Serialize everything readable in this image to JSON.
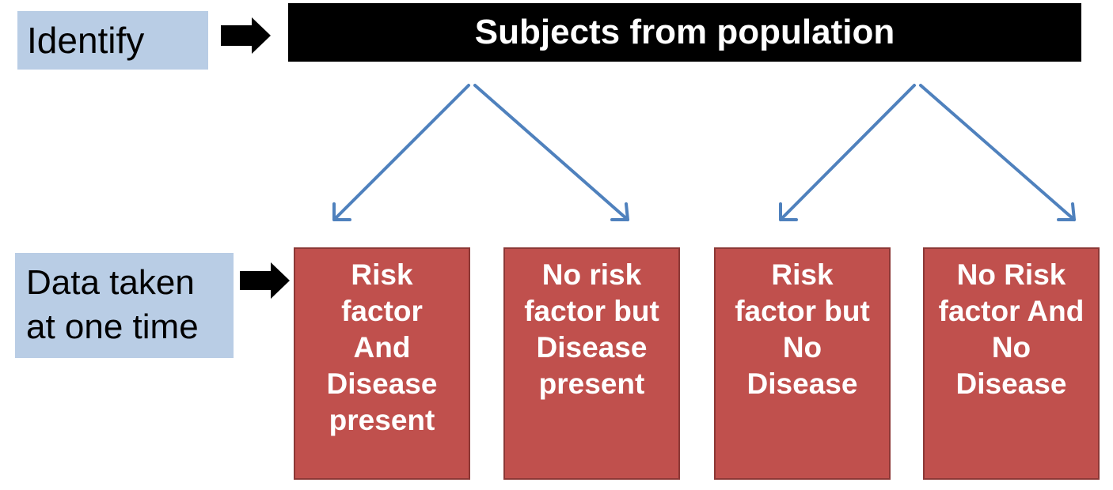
{
  "labels": {
    "identify": "Identify",
    "data_line1": "Data taken",
    "data_line2": "at one time"
  },
  "title": "Subjects from population",
  "boxes": [
    {
      "lines": [
        "Risk",
        "factor",
        "And",
        "Disease",
        "present"
      ]
    },
    {
      "lines": [
        "No risk",
        "factor but",
        "Disease",
        "present"
      ]
    },
    {
      "lines": [
        "Risk",
        "factor but",
        "No",
        "Disease"
      ]
    },
    {
      "lines": [
        "No Risk",
        "factor And",
        "No",
        "Disease"
      ]
    }
  ],
  "colors": {
    "label_fill": "#b9cde5",
    "title_fill": "#000000",
    "box_fill": "#c0504d",
    "connector": "#4f81bd"
  },
  "icons": {
    "pointer_arrow": "block-arrow-right-icon",
    "connector_arrow": "arrow-icon"
  }
}
